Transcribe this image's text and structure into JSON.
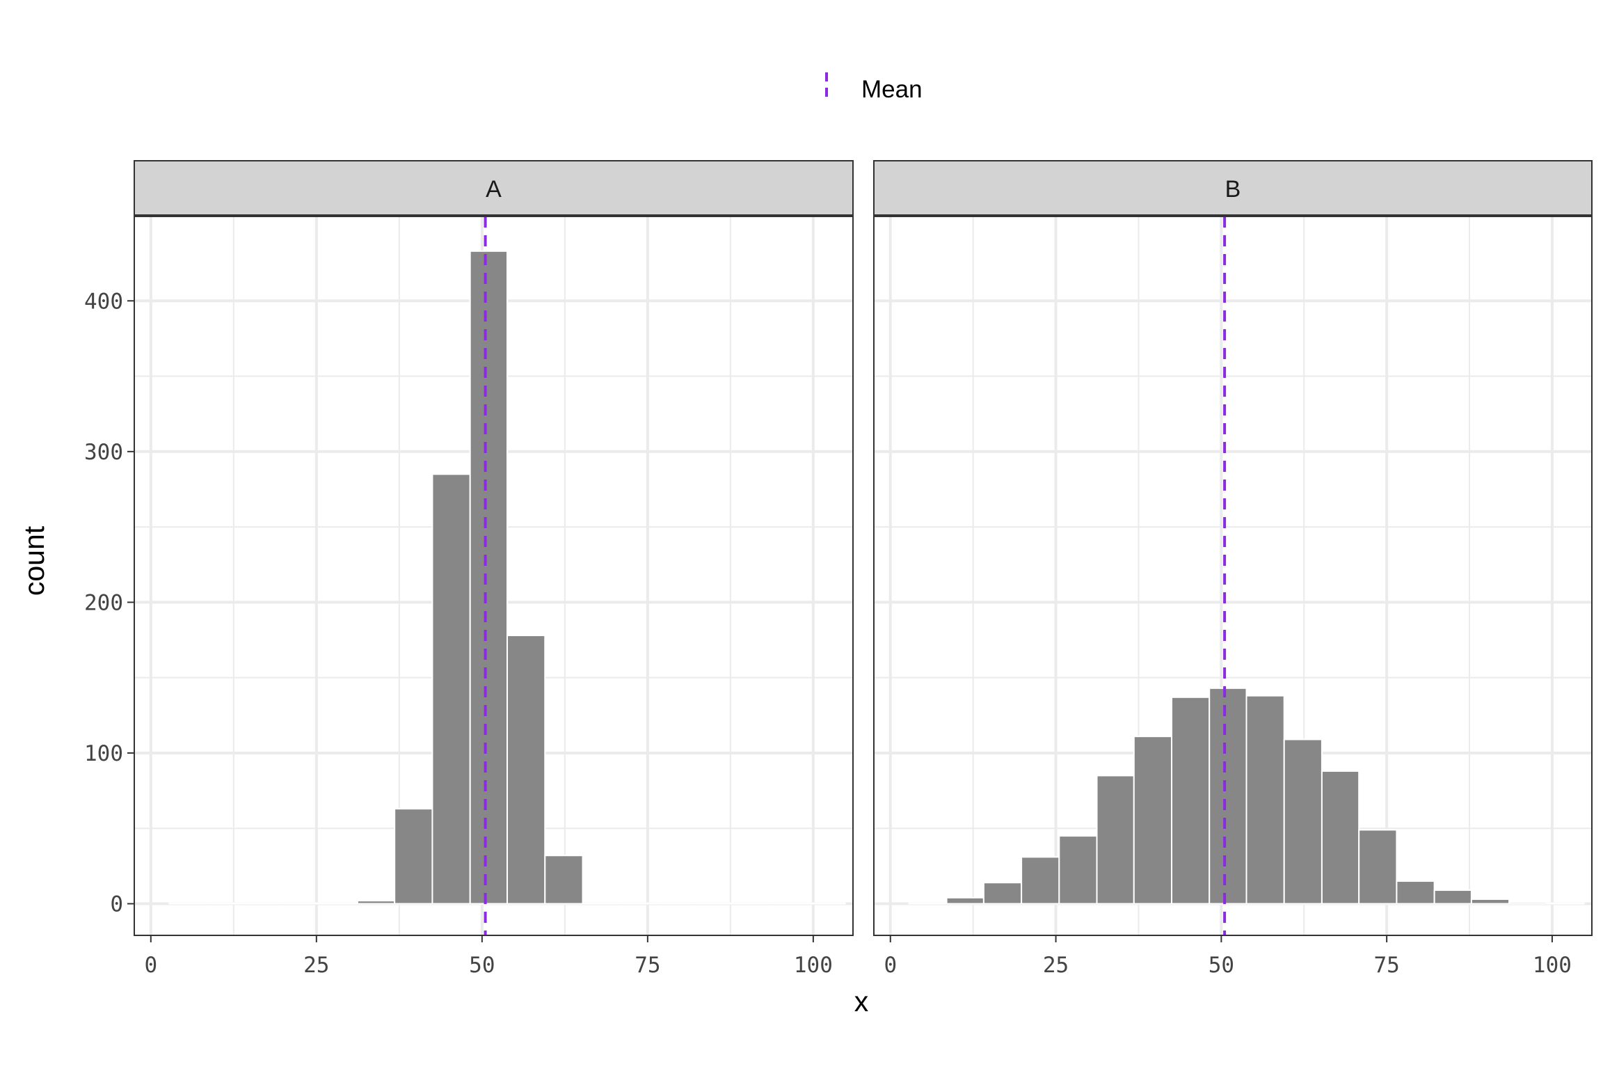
{
  "chart_data": {
    "type": "bar",
    "subtype": "faceted-histogram",
    "title": "",
    "xlabel": "x",
    "ylabel": "count",
    "xlim": [
      -2.5,
      106
    ],
    "ylim": [
      -21,
      456
    ],
    "x_ticks": [
      0,
      25,
      50,
      75,
      100
    ],
    "x_tick_labels": [
      "0",
      "25",
      "50",
      "75",
      "100"
    ],
    "y_ticks": [
      0,
      100,
      200,
      300,
      400
    ],
    "y_tick_labels": [
      "0",
      "100",
      "200",
      "300",
      "400"
    ],
    "grid": true,
    "bin_width": 5.67,
    "legend": {
      "position": "top",
      "items": [
        {
          "label": "Mean",
          "style": "dashed-line",
          "color": "#8a2be2"
        }
      ]
    },
    "colors": {
      "bar_fill": "#878787",
      "bar_stroke": "#ffffff",
      "mean_line": "#8a2be2",
      "strip_fill": "#d3d3d3",
      "grid": "#ebebeb"
    },
    "facets": [
      {
        "label": "A",
        "mean": 50.5,
        "bins": [
          {
            "x0": 2.8,
            "x1": 8.5,
            "count": 0
          },
          {
            "x0": 8.5,
            "x1": 14.1,
            "count": 0
          },
          {
            "x0": 14.1,
            "x1": 19.8,
            "count": 0
          },
          {
            "x0": 19.8,
            "x1": 25.5,
            "count": 0
          },
          {
            "x0": 25.5,
            "x1": 31.2,
            "count": 0
          },
          {
            "x0": 31.2,
            "x1": 36.8,
            "count": 2
          },
          {
            "x0": 36.8,
            "x1": 42.5,
            "count": 63
          },
          {
            "x0": 42.5,
            "x1": 48.2,
            "count": 285
          },
          {
            "x0": 48.2,
            "x1": 53.8,
            "count": 433
          },
          {
            "x0": 53.8,
            "x1": 59.5,
            "count": 178
          },
          {
            "x0": 59.5,
            "x1": 65.2,
            "count": 32
          },
          {
            "x0": 65.2,
            "x1": 70.8,
            "count": 0
          },
          {
            "x0": 70.8,
            "x1": 76.5,
            "count": 0
          },
          {
            "x0": 76.5,
            "x1": 82.2,
            "count": 0
          },
          {
            "x0": 82.2,
            "x1": 87.8,
            "count": 0
          },
          {
            "x0": 87.8,
            "x1": 93.5,
            "count": 0
          },
          {
            "x0": 93.5,
            "x1": 99.2,
            "count": 0
          },
          {
            "x0": 99.2,
            "x1": 104.8,
            "count": 0
          }
        ]
      },
      {
        "label": "B",
        "mean": 50.5,
        "bins": [
          {
            "x0": 2.8,
            "x1": 8.5,
            "count": 0
          },
          {
            "x0": 8.5,
            "x1": 14.1,
            "count": 4
          },
          {
            "x0": 14.1,
            "x1": 19.8,
            "count": 14
          },
          {
            "x0": 19.8,
            "x1": 25.5,
            "count": 31
          },
          {
            "x0": 25.5,
            "x1": 31.2,
            "count": 45
          },
          {
            "x0": 31.2,
            "x1": 36.8,
            "count": 85
          },
          {
            "x0": 36.8,
            "x1": 42.5,
            "count": 111
          },
          {
            "x0": 42.5,
            "x1": 48.2,
            "count": 137
          },
          {
            "x0": 48.2,
            "x1": 53.8,
            "count": 143
          },
          {
            "x0": 53.8,
            "x1": 59.5,
            "count": 138
          },
          {
            "x0": 59.5,
            "x1": 65.2,
            "count": 109
          },
          {
            "x0": 65.2,
            "x1": 70.8,
            "count": 88
          },
          {
            "x0": 70.8,
            "x1": 76.5,
            "count": 49
          },
          {
            "x0": 76.5,
            "x1": 82.2,
            "count": 15
          },
          {
            "x0": 82.2,
            "x1": 87.8,
            "count": 9
          },
          {
            "x0": 87.8,
            "x1": 93.5,
            "count": 3
          },
          {
            "x0": 93.5,
            "x1": 99.2,
            "count": 1
          },
          {
            "x0": 99.2,
            "x1": 104.8,
            "count": 0
          }
        ]
      }
    ]
  }
}
